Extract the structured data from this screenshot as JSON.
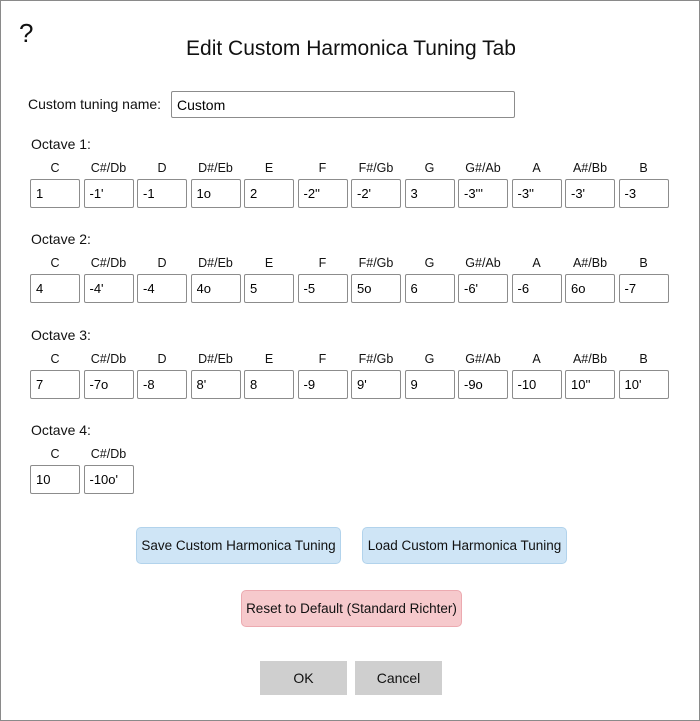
{
  "dialog": {
    "help_glyph": "?",
    "title": "Edit Custom Harmonica Tuning Tab"
  },
  "tuning_name": {
    "label": "Custom tuning name:",
    "value": "Custom"
  },
  "octaves": [
    {
      "label": "Octave 1:",
      "notes": [
        {
          "name": "C",
          "value": "1"
        },
        {
          "name": "C#/Db",
          "value": "-1'"
        },
        {
          "name": "D",
          "value": "-1"
        },
        {
          "name": "D#/Eb",
          "value": "1o"
        },
        {
          "name": "E",
          "value": "2"
        },
        {
          "name": "F",
          "value": "-2''"
        },
        {
          "name": "F#/Gb",
          "value": "-2'"
        },
        {
          "name": "G",
          "value": "3"
        },
        {
          "name": "G#/Ab",
          "value": "-3'''"
        },
        {
          "name": "A",
          "value": "-3''"
        },
        {
          "name": "A#/Bb",
          "value": "-3'"
        },
        {
          "name": "B",
          "value": "-3"
        }
      ]
    },
    {
      "label": "Octave 2:",
      "notes": [
        {
          "name": "C",
          "value": "4"
        },
        {
          "name": "C#/Db",
          "value": "-4'"
        },
        {
          "name": "D",
          "value": "-4"
        },
        {
          "name": "D#/Eb",
          "value": "4o"
        },
        {
          "name": "E",
          "value": "5"
        },
        {
          "name": "F",
          "value": "-5"
        },
        {
          "name": "F#/Gb",
          "value": "5o"
        },
        {
          "name": "G",
          "value": "6"
        },
        {
          "name": "G#/Ab",
          "value": "-6'"
        },
        {
          "name": "A",
          "value": "-6"
        },
        {
          "name": "A#/Bb",
          "value": "6o"
        },
        {
          "name": "B",
          "value": "-7"
        }
      ]
    },
    {
      "label": "Octave 3:",
      "notes": [
        {
          "name": "C",
          "value": "7"
        },
        {
          "name": "C#/Db",
          "value": "-7o"
        },
        {
          "name": "D",
          "value": "-8"
        },
        {
          "name": "D#/Eb",
          "value": "8'"
        },
        {
          "name": "E",
          "value": "8"
        },
        {
          "name": "F",
          "value": "-9"
        },
        {
          "name": "F#/Gb",
          "value": "9'"
        },
        {
          "name": "G",
          "value": "9"
        },
        {
          "name": "G#/Ab",
          "value": "-9o"
        },
        {
          "name": "A",
          "value": "-10"
        },
        {
          "name": "A#/Bb",
          "value": "10''"
        },
        {
          "name": "B",
          "value": "10'"
        }
      ]
    },
    {
      "label": "Octave 4:",
      "notes": [
        {
          "name": "C",
          "value": "10"
        },
        {
          "name": "C#/Db",
          "value": "-10o'"
        }
      ]
    }
  ],
  "buttons": {
    "save": "Save Custom Harmonica Tuning",
    "load": "Load Custom Harmonica Tuning",
    "reset": "Reset to Default (Standard Richter)",
    "ok": "OK",
    "cancel": "Cancel"
  },
  "colors": {
    "blue_button": "#cfe5f6",
    "red_button": "#f6c9cc",
    "gray_button": "#cfcfcf"
  }
}
